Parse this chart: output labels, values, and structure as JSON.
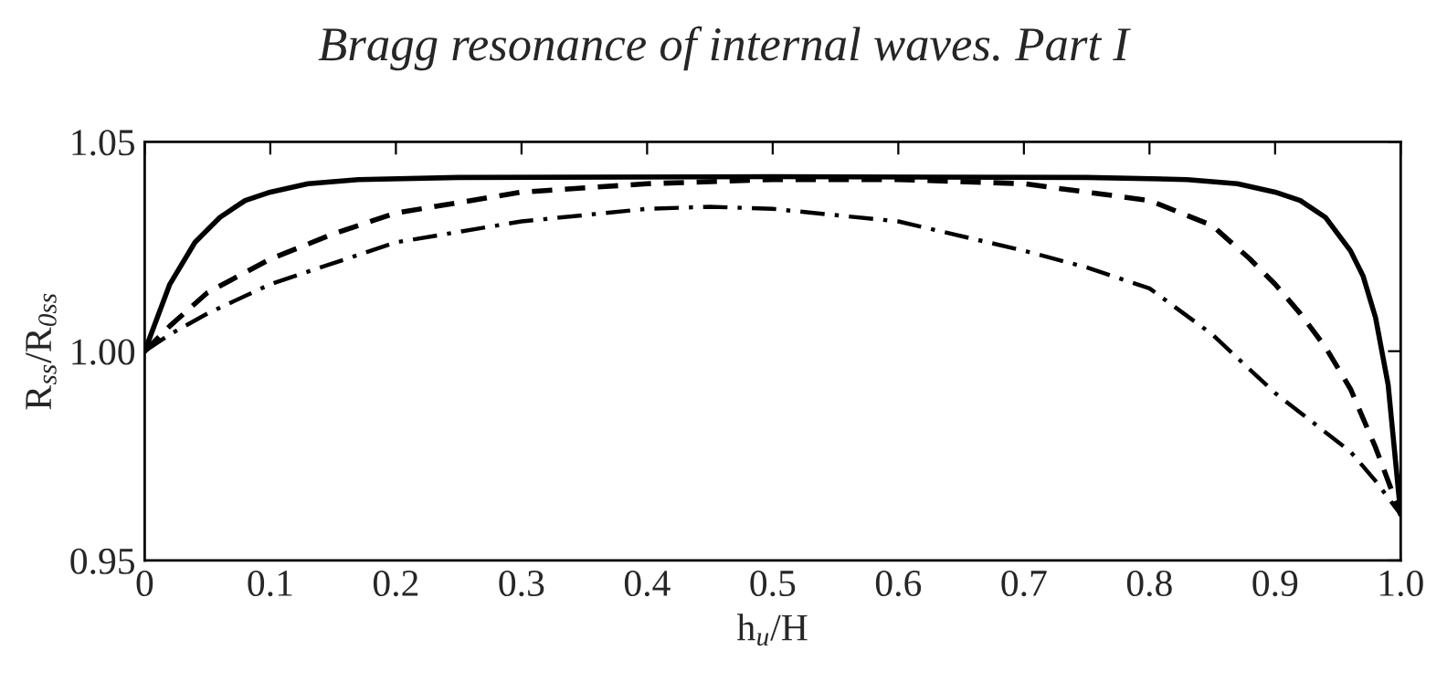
{
  "chart_data": {
    "type": "line",
    "title": "Bragg resonance of internal waves. Part I",
    "xlabel": "h$_{u}$/H",
    "ylabel": "R$_{ss}$/R$_{0ss}$",
    "xlim": [
      0,
      1
    ],
    "ylim": [
      0.95,
      1.05
    ],
    "xticks": [
      0,
      0.1,
      0.2,
      0.3,
      0.4,
      0.5,
      0.6,
      0.7,
      0.8,
      0.9,
      {
        "value": 1,
        "label": "1.0"
      }
    ],
    "yticks": [
      0.95,
      {
        "value": 1,
        "label": "1.00"
      },
      1.05
    ],
    "grid": false,
    "legend": false,
    "series": [
      {
        "color": "#000000",
        "line_style": "solid",
        "x": [
          0,
          0.01,
          0.02,
          0.04,
          0.06,
          0.08,
          0.1,
          0.13,
          0.17,
          0.25,
          0.5,
          0.75,
          0.83,
          0.87,
          0.9,
          0.92,
          0.94,
          0.96,
          0.97,
          0.98,
          0.99,
          1.0
        ],
        "values": [
          1.0,
          1.008,
          1.016,
          1.026,
          1.032,
          1.036,
          1.038,
          1.04,
          1.041,
          1.0415,
          1.0417,
          1.0415,
          1.041,
          1.04,
          1.038,
          1.036,
          1.032,
          1.024,
          1.018,
          1.008,
          0.992,
          0.961
        ]
      },
      {
        "color": "#000000",
        "line_style": "dashed",
        "x": [
          0,
          0.02,
          0.05,
          0.1,
          0.15,
          0.2,
          0.3,
          0.4,
          0.5,
          0.6,
          0.7,
          0.75,
          0.8,
          0.85,
          0.88,
          0.9,
          0.92,
          0.94,
          0.96,
          0.98,
          1.0
        ],
        "values": [
          1.0,
          1.006,
          1.014,
          1.022,
          1.028,
          1.033,
          1.038,
          1.04,
          1.041,
          1.041,
          1.04,
          1.038,
          1.036,
          1.03,
          1.022,
          1.016,
          1.009,
          1.001,
          0.991,
          0.977,
          0.961
        ]
      },
      {
        "color": "#000000",
        "line_style": "dashdot",
        "x": [
          0,
          0.02,
          0.05,
          0.1,
          0.15,
          0.2,
          0.3,
          0.4,
          0.45,
          0.5,
          0.6,
          0.7,
          0.75,
          0.8,
          0.85,
          0.9,
          0.93,
          0.96,
          0.98,
          1.0
        ],
        "values": [
          1.0,
          1.004,
          1.009,
          1.016,
          1.021,
          1.026,
          1.031,
          1.034,
          1.0345,
          1.034,
          1.031,
          1.024,
          1.02,
          1.015,
          1.004,
          0.99,
          0.983,
          0.976,
          0.969,
          0.961
        ]
      }
    ]
  }
}
